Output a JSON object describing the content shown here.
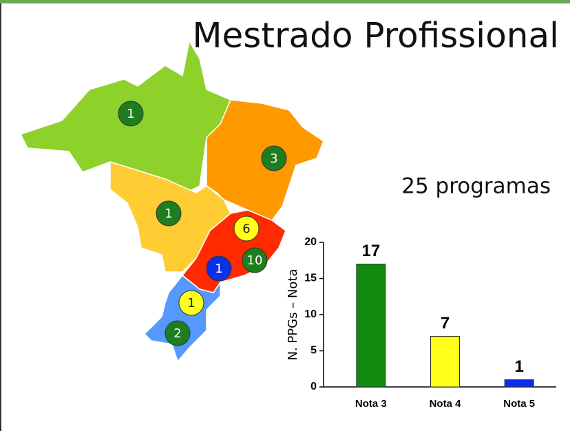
{
  "slide": {
    "title": "Mestrado Profissional",
    "subtitle": "25 programas"
  },
  "map": {
    "markers": [
      {
        "label": 1,
        "color": "#1e7d1e"
      },
      {
        "label": 3,
        "color": "#1e7d1e"
      },
      {
        "label": 1,
        "color": "#1e7d1e"
      },
      {
        "label": 6,
        "color": "#ffff1a"
      },
      {
        "label": 10,
        "color": "#1e7d1e"
      },
      {
        "label": 1,
        "color": "#0a30e8"
      },
      {
        "label": 1,
        "color": "#ffff1a"
      },
      {
        "label": 2,
        "color": "#1e7d1e"
      }
    ]
  },
  "chart_data": {
    "type": "bar",
    "ylabel": "N. PPGs – Nota",
    "categories": [
      "Nota 3",
      "Nota 4",
      "Nota 5"
    ],
    "values": [
      17,
      7,
      1
    ],
    "colors": [
      "#0f8a0f",
      "#ffff1a",
      "#0a2ee8"
    ],
    "ylim": [
      0,
      20
    ],
    "yticks": [
      0,
      5,
      10,
      15,
      20
    ]
  }
}
